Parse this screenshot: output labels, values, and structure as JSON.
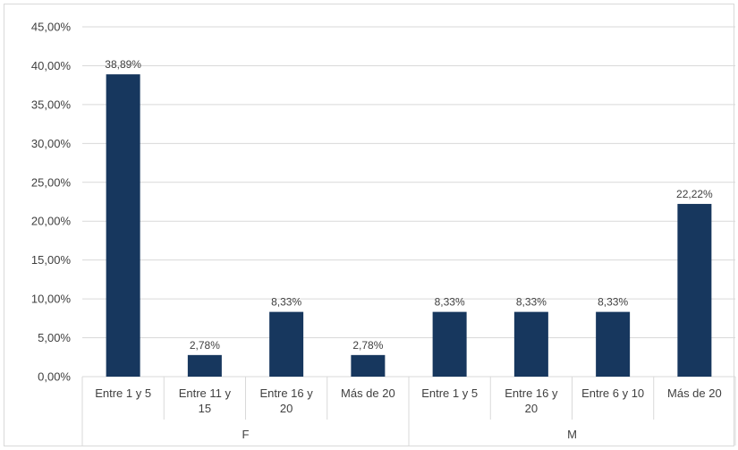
{
  "chart_data": {
    "type": "bar",
    "title": "",
    "xlabel": "",
    "ylabel": "",
    "ylim": [
      0,
      45
    ],
    "y_ticks": [
      "0,00%",
      "5,00%",
      "10,00%",
      "15,00%",
      "20,00%",
      "25,00%",
      "30,00%",
      "35,00%",
      "40,00%",
      "45,00%"
    ],
    "grid": true,
    "groups": [
      {
        "name": "F",
        "categories": [
          [
            "Entre 1 y 5"
          ],
          [
            "Entre 11 y",
            "15"
          ],
          [
            "Entre 16 y",
            "20"
          ],
          [
            "Más de 20"
          ]
        ]
      },
      {
        "name": "M",
        "categories": [
          [
            "Entre 1 y 5"
          ],
          [
            "Entre 16 y",
            "20"
          ],
          [
            "Entre 6 y 10"
          ],
          [
            "Más de 20"
          ]
        ]
      }
    ],
    "values": [
      38.89,
      2.78,
      8.33,
      2.78,
      8.33,
      8.33,
      8.33,
      22.22
    ],
    "data_labels": [
      "38,89%",
      "2,78%",
      "8,33%",
      "2,78%",
      "8,33%",
      "8,33%",
      "8,33%",
      "22,22%"
    ],
    "bar_color": "#17375e",
    "grid_color": "#d9d9d9"
  }
}
